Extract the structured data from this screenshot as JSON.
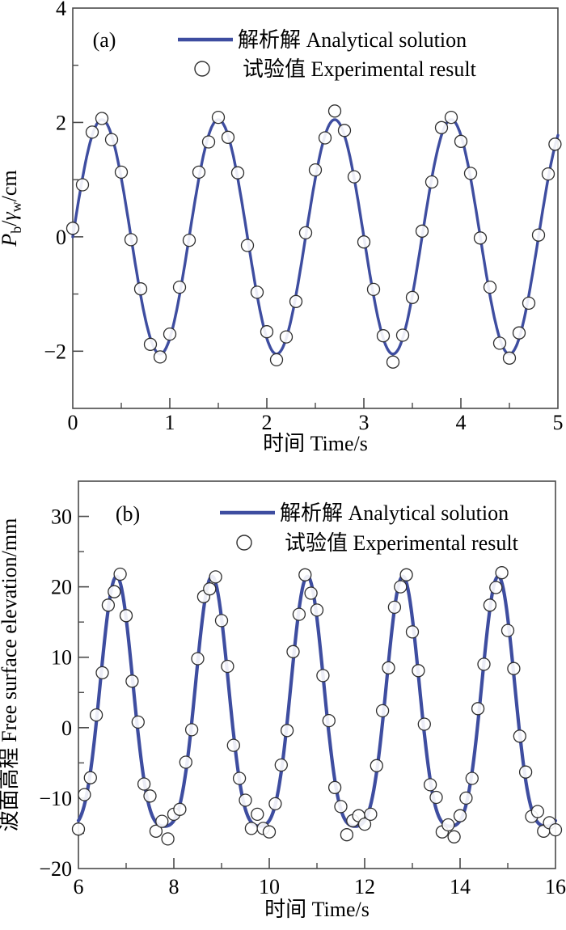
{
  "figure": {
    "background": "#ffffff",
    "colors": {
      "analytical_line": "#3e4da0",
      "marker_stroke": "#2f2f2f",
      "frame": "#4a4a4a",
      "text": "#000000"
    }
  },
  "chart_data": [
    {
      "type": "line+scatter",
      "panel_label": "(a)",
      "xlabel": "时间 Time/s",
      "ylabel_plain": "P_b/γ_w/cm",
      "ylabel_segments": [
        {
          "text": "P",
          "italic": true
        },
        {
          "text": "b",
          "sub": true
        },
        {
          "text": "/"
        },
        {
          "text": "γ",
          "italic": true
        },
        {
          "text": "w",
          "sub": true
        },
        {
          "text": "/cm"
        }
      ],
      "xlim": [
        0,
        5
      ],
      "ylim": [
        -3,
        4
      ],
      "xticks_major": [
        0,
        1,
        2,
        3,
        4,
        5
      ],
      "xticks_minor": [
        0.5,
        1.5,
        2.5,
        3.5,
        4.5
      ],
      "yticks_major": [
        -2,
        0,
        2,
        4
      ],
      "yticks_minor": [
        -1,
        1,
        3
      ],
      "grid": false,
      "legend_position": "inside-top-center",
      "series": [
        {
          "name": "解析解 Analytical solution",
          "type": "line",
          "color": "#3e4da0",
          "model": {
            "form": "sine",
            "amplitude": 2.05,
            "mean": 0,
            "period_s": 1.2,
            "t_zero_up": 0
          }
        },
        {
          "name": "试验值 Experimental result",
          "type": "scatter",
          "marker": "open-circle",
          "points": [
            [
              0.0,
              0.15
            ],
            [
              0.1,
              0.91
            ],
            [
              0.2,
              1.83
            ],
            [
              0.3,
              2.07
            ],
            [
              0.4,
              1.7
            ],
            [
              0.5,
              1.13
            ],
            [
              0.6,
              -0.05
            ],
            [
              0.7,
              -0.91
            ],
            [
              0.8,
              -1.88
            ],
            [
              0.9,
              -2.1
            ],
            [
              1.0,
              -1.7
            ],
            [
              1.1,
              -0.88
            ],
            [
              1.2,
              -0.06
            ],
            [
              1.3,
              1.13
            ],
            [
              1.4,
              1.66
            ],
            [
              1.5,
              2.09
            ],
            [
              1.6,
              1.74
            ],
            [
              1.7,
              1.12
            ],
            [
              1.8,
              -0.15
            ],
            [
              1.9,
              -0.97
            ],
            [
              2.0,
              -1.66
            ],
            [
              2.1,
              -2.15
            ],
            [
              2.2,
              -1.75
            ],
            [
              2.3,
              -1.13
            ],
            [
              2.4,
              0.07
            ],
            [
              2.5,
              1.17
            ],
            [
              2.6,
              1.73
            ],
            [
              2.7,
              2.2
            ],
            [
              2.8,
              1.86
            ],
            [
              2.9,
              1.05
            ],
            [
              3.0,
              -0.09
            ],
            [
              3.1,
              -0.92
            ],
            [
              3.2,
              -1.73
            ],
            [
              3.3,
              -2.19
            ],
            [
              3.4,
              -1.72
            ],
            [
              3.5,
              -1.06
            ],
            [
              3.6,
              0.1
            ],
            [
              3.7,
              0.96
            ],
            [
              3.8,
              1.91
            ],
            [
              3.9,
              2.09
            ],
            [
              4.0,
              1.67
            ],
            [
              4.1,
              1.11
            ],
            [
              4.2,
              -0.02
            ],
            [
              4.3,
              -0.88
            ],
            [
              4.4,
              -1.86
            ],
            [
              4.5,
              -2.12
            ],
            [
              4.6,
              -1.68
            ],
            [
              4.7,
              -1.16
            ],
            [
              4.8,
              0.03
            ],
            [
              4.9,
              1.1
            ],
            [
              4.97,
              1.62
            ]
          ]
        }
      ]
    },
    {
      "type": "line+scatter",
      "panel_label": "(b)",
      "xlabel": "时间 Time/s",
      "ylabel_plain": "波面高程 Free surface elevation/mm",
      "ylabel_segments": [
        {
          "text": "波面高程 Free surface elevation/mm"
        }
      ],
      "xlim": [
        6,
        16
      ],
      "ylim": [
        -20,
        35
      ],
      "xticks_major": [
        6,
        8,
        10,
        12,
        14,
        16
      ],
      "xticks_minor": [
        7,
        9,
        11,
        13,
        15
      ],
      "yticks_major": [
        -20,
        -10,
        0,
        10,
        20,
        30
      ],
      "yticks_minor": [
        -15,
        -5,
        5,
        15,
        25
      ],
      "grid": false,
      "legend_position": "inside-top-center",
      "series": [
        {
          "name": "解析解 Analytical solution",
          "type": "line",
          "color": "#3e4da0",
          "model": {
            "form": "stokes2",
            "a1": 17.75,
            "a2": 3.75,
            "period_s": 2,
            "crest_t": 6.8
          }
        },
        {
          "name": "试验值 Experimental result",
          "type": "scatter",
          "marker": "open-circle",
          "points": [
            [
              6.0,
              -14.4
            ],
            [
              6.125,
              -9.5
            ],
            [
              6.25,
              -7.1
            ],
            [
              6.375,
              1.8
            ],
            [
              6.5,
              7.8
            ],
            [
              6.625,
              17.4
            ],
            [
              6.75,
              19.3
            ],
            [
              6.875,
              21.8
            ],
            [
              7.0,
              15.9
            ],
            [
              7.125,
              6.6
            ],
            [
              7.25,
              0.8
            ],
            [
              7.375,
              -8.0
            ],
            [
              7.5,
              -9.7
            ],
            [
              7.625,
              -14.7
            ],
            [
              7.75,
              -13.3
            ],
            [
              7.875,
              -15.8
            ],
            [
              8.0,
              -12.3
            ],
            [
              8.125,
              -11.6
            ],
            [
              8.25,
              -4.9
            ],
            [
              8.375,
              -0.3
            ],
            [
              8.5,
              9.8
            ],
            [
              8.625,
              18.6
            ],
            [
              8.75,
              19.7
            ],
            [
              8.875,
              21.4
            ],
            [
              9.0,
              15.2
            ],
            [
              9.125,
              8.7
            ],
            [
              9.25,
              -2.5
            ],
            [
              9.375,
              -7.2
            ],
            [
              9.5,
              -10.3
            ],
            [
              9.625,
              -14.3
            ],
            [
              9.75,
              -12.3
            ],
            [
              9.875,
              -14.3
            ],
            [
              10.0,
              -14.8
            ],
            [
              10.125,
              -10.8
            ],
            [
              10.25,
              -5.3
            ],
            [
              10.375,
              -0.4
            ],
            [
              10.5,
              10.8
            ],
            [
              10.625,
              16.1
            ],
            [
              10.75,
              21.7
            ],
            [
              10.875,
              19.1
            ],
            [
              11.0,
              16.7
            ],
            [
              11.125,
              7.4
            ],
            [
              11.25,
              1.0
            ],
            [
              11.375,
              -8.5
            ],
            [
              11.5,
              -11.2
            ],
            [
              11.625,
              -15.2
            ],
            [
              11.75,
              -13.2
            ],
            [
              11.875,
              -12.5
            ],
            [
              12.0,
              -13.7
            ],
            [
              12.125,
              -12.3
            ],
            [
              12.25,
              -5.4
            ],
            [
              12.375,
              2.4
            ],
            [
              12.5,
              8.5
            ],
            [
              12.625,
              17.1
            ],
            [
              12.75,
              20.0
            ],
            [
              12.875,
              21.7
            ],
            [
              13.0,
              13.6
            ],
            [
              13.125,
              8.1
            ],
            [
              13.25,
              0.5
            ],
            [
              13.375,
              -8.1
            ],
            [
              13.5,
              -9.9
            ],
            [
              13.625,
              -14.8
            ],
            [
              13.75,
              -13.8
            ],
            [
              13.875,
              -15.5
            ],
            [
              14.0,
              -12.5
            ],
            [
              14.125,
              -10.0
            ],
            [
              14.25,
              -7.2
            ],
            [
              14.375,
              2.7
            ],
            [
              14.5,
              9.0
            ],
            [
              14.625,
              17.4
            ],
            [
              14.75,
              19.9
            ],
            [
              14.875,
              22.0
            ],
            [
              15.0,
              13.8
            ],
            [
              15.125,
              8.4
            ],
            [
              15.25,
              -1.2
            ],
            [
              15.375,
              -6.3
            ],
            [
              15.5,
              -12.6
            ],
            [
              15.625,
              -11.9
            ],
            [
              15.75,
              -14.7
            ],
            [
              15.875,
              -13.5
            ],
            [
              16.0,
              -14.5
            ]
          ]
        }
      ]
    }
  ]
}
